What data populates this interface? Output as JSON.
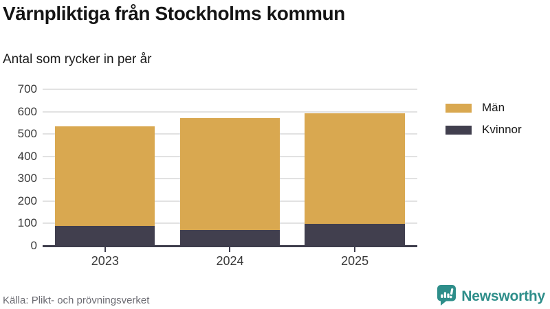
{
  "header": {
    "title": "Värnpliktiga från Stockholms kommun",
    "subtitle": "Antal som rycker in per år"
  },
  "chart_data": {
    "type": "bar",
    "stacked": true,
    "categories": [
      "2023",
      "2024",
      "2025"
    ],
    "series": [
      {
        "name": "Män",
        "color": "#d9a850",
        "values": [
          445,
          498,
          495
        ]
      },
      {
        "name": "Kvinnor",
        "color": "#413f4e",
        "values": [
          90,
          72,
          97
        ]
      }
    ],
    "totals": [
      535,
      570,
      592
    ],
    "ylim": [
      0,
      700
    ],
    "yticks": [
      0,
      100,
      200,
      300,
      400,
      500,
      600,
      700
    ],
    "grid": "horizontal",
    "legend_position": "right",
    "colors": {
      "gridline": "#e2e2e2",
      "axis": "#3f3e4d",
      "tick_label": "#3a3a3a"
    }
  },
  "footer": {
    "source": "Källa: Plikt- och prövningsverket",
    "brand": "Newsworthy",
    "brand_color": "#2e8e8a"
  }
}
